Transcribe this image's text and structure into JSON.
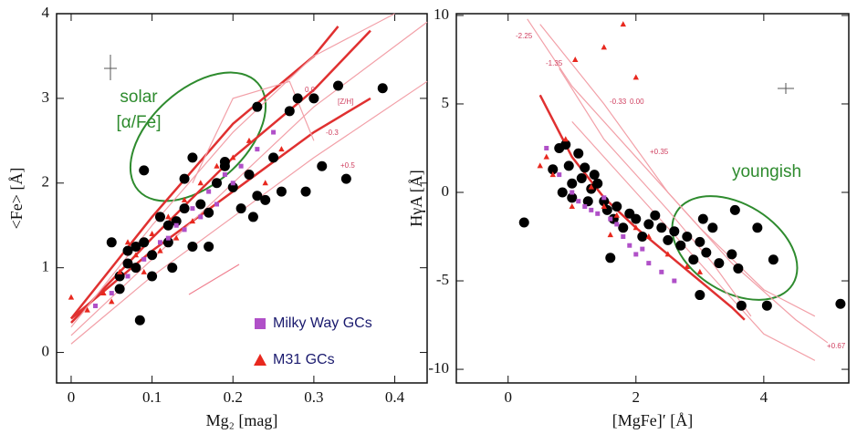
{
  "chart_data": [
    {
      "type": "scatter",
      "x_label": "Mg₂ [mag]",
      "y_label": "<Fe> [Å]",
      "xlim": [
        -0.018,
        0.44
      ],
      "ylim": [
        -0.36,
        4
      ],
      "xticks": [
        0,
        0.1,
        0.2,
        0.3,
        0.4
      ],
      "yticks": [
        0,
        1,
        2,
        3,
        4
      ],
      "annotations": [
        "solar",
        "[α/Fe]"
      ],
      "model_labels": [
        "0.0",
        "-0.3",
        "+0.5",
        "[Z/H]"
      ],
      "model_lines": [
        {
          "color": "#e03030",
          "x": [
            0,
            0.1,
            0.2,
            0.3,
            0.37
          ],
          "y": [
            0.4,
            1.2,
            1.9,
            2.6,
            3.0
          ]
        },
        {
          "color": "#e03030",
          "x": [
            0,
            0.1,
            0.2,
            0.3,
            0.37
          ],
          "y": [
            0.35,
            1.35,
            2.3,
            3.1,
            3.8
          ]
        },
        {
          "color": "#e03030",
          "x": [
            0,
            0.1,
            0.2,
            0.3,
            0.33
          ],
          "y": [
            0.4,
            1.6,
            2.7,
            3.5,
            3.85
          ]
        },
        {
          "color": "#f2a0a8",
          "x": [
            0,
            0.1,
            0.2,
            0.3,
            0.44
          ],
          "y": [
            0.1,
            0.9,
            1.6,
            2.3,
            3.2
          ]
        },
        {
          "color": "#f2a0a8",
          "x": [
            0,
            0.1,
            0.2,
            0.3,
            0.44
          ],
          "y": [
            0.2,
            1.1,
            2.0,
            2.9,
            3.9
          ]
        },
        {
          "color": "#f2a0a8",
          "x": [
            0,
            0.1,
            0.2,
            0.3,
            0.4
          ],
          "y": [
            0.3,
            1.5,
            2.6,
            3.5,
            4.0
          ]
        },
        {
          "color": "#f2a0a8",
          "x": [
            0.15,
            0.2,
            0.27,
            0.3
          ],
          "y": [
            2.0,
            3.0,
            3.2,
            2.5
          ]
        }
      ],
      "series": [
        {
          "color": "#000000",
          "marker": "circle",
          "x": [
            0.05,
            0.06,
            0.06,
            0.07,
            0.07,
            0.08,
            0.08,
            0.085,
            0.09,
            0.09,
            0.1,
            0.1,
            0.11,
            0.12,
            0.12,
            0.125,
            0.13,
            0.14,
            0.14,
            0.15,
            0.15,
            0.16,
            0.17,
            0.17,
            0.18,
            0.19,
            0.2,
            0.21,
            0.22,
            0.225,
            0.23,
            0.24,
            0.25,
            0.26,
            0.27,
            0.28,
            0.29,
            0.3,
            0.31,
            0.33,
            0.34,
            0.385,
            0.19,
            0.23
          ],
          "y": [
            1.3,
            0.9,
            0.75,
            1.2,
            1.05,
            1.25,
            1.0,
            0.38,
            2.15,
            1.3,
            0.9,
            1.15,
            1.6,
            1.3,
            1.5,
            1.0,
            1.55,
            2.05,
            1.7,
            2.3,
            1.25,
            1.75,
            1.65,
            1.25,
            2.0,
            2.2,
            1.95,
            1.7,
            2.1,
            1.6,
            2.9,
            1.8,
            2.3,
            1.9,
            2.85,
            3.0,
            1.9,
            3.0,
            2.2,
            3.15,
            2.05,
            3.12,
            2.25,
            1.85
          ]
        },
        {
          "name": "Milky Way GCs",
          "color": "#b050c8",
          "marker": "square",
          "x": [
            0.03,
            0.05,
            0.07,
            0.09,
            0.11,
            0.13,
            0.15,
            0.17,
            0.19,
            0.21,
            0.16,
            0.18,
            0.2,
            0.23,
            0.25,
            0.12,
            0.14
          ],
          "y": [
            0.55,
            0.7,
            0.9,
            1.1,
            1.3,
            1.5,
            1.7,
            1.9,
            2.1,
            2.2,
            1.6,
            1.75,
            2.0,
            2.4,
            2.6,
            1.35,
            1.45
          ]
        },
        {
          "name": "M31 GCs",
          "color": "#e8281e",
          "marker": "triangle",
          "x": [
            0,
            0.02,
            0.04,
            0.06,
            0.08,
            0.1,
            0.12,
            0.14,
            0.16,
            0.18,
            0.2,
            0.22,
            0.11,
            0.13,
            0.15,
            0.07,
            0.09,
            0.05,
            0.24,
            0.26
          ],
          "y": [
            0.65,
            0.5,
            0.7,
            0.95,
            1.15,
            1.4,
            1.6,
            1.8,
            2.0,
            2.2,
            2.3,
            2.5,
            1.2,
            1.35,
            1.55,
            1.3,
            0.95,
            0.6,
            2.0,
            2.4
          ]
        }
      ]
    },
    {
      "type": "scatter",
      "x_label": "[MgFe]′ [Å]",
      "y_label": "HγA [Å]",
      "xlim": [
        -0.81,
        5.33
      ],
      "ylim": [
        -10.77,
        10.1
      ],
      "xticks": [
        0,
        2,
        4
      ],
      "yticks": [
        -10,
        -5,
        0,
        5,
        10
      ],
      "annotations": [
        "youngish"
      ],
      "model_labels": [
        "-2.25",
        "-1.35",
        "-0.33",
        "0.00",
        "+0.35",
        "+0.67"
      ],
      "model_lines": [
        {
          "color": "#e03030",
          "x": [
            0.5,
            1.0,
            1.5,
            2.0,
            2.5,
            3.0,
            3.5,
            3.7
          ],
          "y": [
            5.5,
            2.0,
            -0.3,
            -2.0,
            -3.5,
            -5.0,
            -6.5,
            -7.2
          ]
        },
        {
          "color": "#f2a0a8",
          "x": [
            0.3,
            1.0,
            2.0,
            3.0,
            4.0,
            4.8
          ],
          "y": [
            9.8,
            6,
            2,
            -2,
            -5.5,
            -7
          ]
        },
        {
          "color": "#f2a0a8",
          "x": [
            0.5,
            1.5,
            2.5,
            3.5,
            4.5,
            5.0
          ],
          "y": [
            9.5,
            5,
            0,
            -4,
            -7.2,
            -8.5
          ]
        },
        {
          "color": "#f2a0a8",
          "x": [
            1,
            2,
            3,
            4,
            4.8
          ],
          "y": [
            4,
            0,
            -4,
            -8,
            -9.5
          ]
        },
        {
          "color": "#f2a0a8",
          "x": [
            0.8,
            1.5,
            2.5,
            3.2,
            3.8
          ],
          "y": [
            7,
            3,
            -1,
            -4,
            -7
          ]
        }
      ],
      "series": [
        {
          "color": "#000000",
          "marker": "circle",
          "x": [
            0.25,
            0.7,
            0.8,
            0.85,
            0.9,
            0.95,
            1.0,
            1.0,
            1.1,
            1.15,
            1.2,
            1.3,
            1.35,
            1.4,
            1.5,
            1.55,
            1.6,
            1.65,
            1.7,
            1.8,
            1.9,
            2.0,
            2.1,
            2.2,
            2.3,
            2.4,
            2.5,
            2.6,
            2.7,
            2.8,
            2.9,
            3.0,
            3.05,
            3.1,
            3.2,
            3.3,
            3.5,
            3.55,
            3.6,
            3.65,
            3.9,
            4.05,
            4.15,
            5.2,
            3.0,
            1.25
          ],
          "y": [
            -1.7,
            1.3,
            2.5,
            0,
            2.7,
            1.5,
            0.5,
            -0.3,
            2.2,
            0.8,
            1.4,
            0.2,
            1.0,
            0.5,
            -0.5,
            -1.0,
            -3.7,
            -1.5,
            -0.8,
            -2.0,
            -1.2,
            -1.5,
            -2.5,
            -1.8,
            -1.3,
            -2.0,
            -2.7,
            -2.2,
            -3.0,
            -2.5,
            -3.8,
            -5.8,
            -1.5,
            -3.4,
            -2.0,
            -4.0,
            -3.5,
            -1.0,
            -4.3,
            -6.4,
            -2.0,
            -6.4,
            -3.8,
            -6.3,
            -2.8,
            -0.5
          ]
        },
        {
          "color": "#b050c8",
          "marker": "square",
          "x": [
            0.6,
            0.8,
            1.0,
            1.2,
            1.4,
            1.6,
            1.8,
            2.0,
            2.2,
            1.5,
            1.7,
            1.9,
            2.1,
            2.4,
            2.6,
            1.1,
            1.3
          ],
          "y": [
            2.5,
            1.0,
            0.0,
            -0.8,
            -1.2,
            -1.5,
            -2.5,
            -3.5,
            -4.0,
            -0.3,
            -1.8,
            -3.0,
            -3.2,
            -4.5,
            -5.0,
            -0.5,
            -1.0
          ]
        },
        {
          "color": "#e8281e",
          "marker": "triangle",
          "x": [
            0.5,
            0.6,
            0.7,
            0.9,
            1.05,
            1.5,
            1.8,
            1.3,
            1.5,
            1.7,
            2.0,
            2.2,
            2.5,
            2.8,
            3.0,
            2.0,
            1.0,
            1.6
          ],
          "y": [
            1.5,
            2.0,
            1.0,
            3.0,
            7.5,
            8.2,
            9.5,
            0.3,
            -0.8,
            -1.3,
            -2.0,
            -2.5,
            -3.5,
            -4.2,
            -4.5,
            6.5,
            -0.8,
            -2.4
          ]
        }
      ]
    }
  ]
}
